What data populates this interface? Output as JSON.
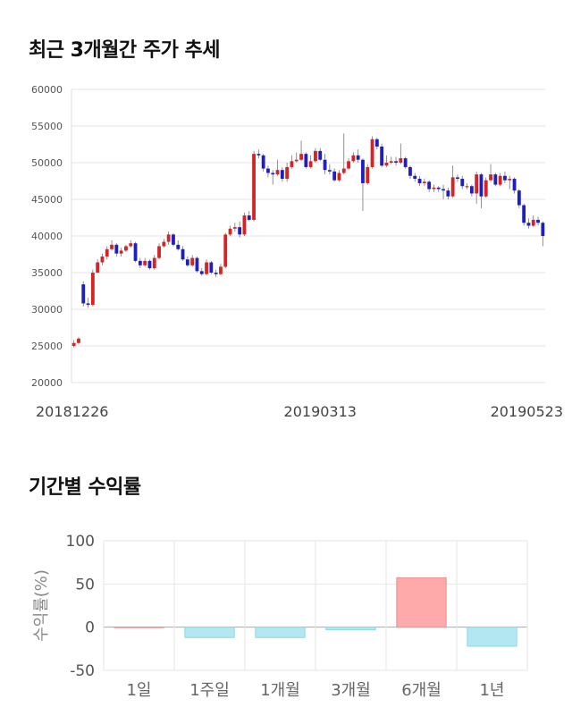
{
  "sections": {
    "price_title": "최근 3개월간 주가 추세",
    "returns_title": "기간별 수익률"
  },
  "colors": {
    "up": "#d42424",
    "down": "#1f1fbf",
    "positive_bar": "#ffaaaa",
    "negative_bar": "#b3e8f2",
    "grid": "#e6e6e6"
  },
  "chart_data": [
    {
      "type": "candlestick",
      "title": "최근 3개월간 주가 추세",
      "ylim": [
        20000,
        60000
      ],
      "y_ticks": [
        "60000",
        "55000",
        "50000",
        "45000",
        "40000",
        "35000",
        "30000",
        "25000",
        "20000"
      ],
      "x_tick_labels": [
        {
          "label": "20181226",
          "index": 0
        },
        {
          "label": "20190313",
          "index": 52
        },
        {
          "label": "20190523",
          "index": 100
        }
      ],
      "grid": true,
      "candles": [
        [
          25000,
          25400,
          25800,
          24800
        ],
        [
          25400,
          26000,
          26200,
          25200
        ],
        [
          33400,
          30800,
          33800,
          30400
        ],
        [
          30800,
          30600,
          31600,
          30200
        ],
        [
          30600,
          35000,
          35400,
          30400
        ],
        [
          35000,
          36400,
          36800,
          35000
        ],
        [
          36400,
          37200,
          37600,
          36000
        ],
        [
          37200,
          38200,
          38600,
          36800
        ],
        [
          38200,
          38800,
          39400,
          38000
        ],
        [
          38800,
          37600,
          39000,
          37200
        ],
        [
          37600,
          38000,
          38400,
          37200
        ],
        [
          38000,
          38600,
          38800,
          37800
        ],
        [
          38600,
          39000,
          39400,
          38400
        ],
        [
          39000,
          36600,
          39200,
          36400
        ],
        [
          36600,
          36000,
          37000,
          35600
        ],
        [
          36000,
          36600,
          37000,
          35800
        ],
        [
          36600,
          35600,
          36800,
          35400
        ],
        [
          35600,
          37000,
          37400,
          35400
        ],
        [
          37000,
          38600,
          39000,
          36800
        ],
        [
          38600,
          39200,
          39600,
          38400
        ],
        [
          39200,
          40200,
          40600,
          38800
        ],
        [
          40200,
          38800,
          40400,
          38600
        ],
        [
          38800,
          38200,
          39400,
          38000
        ],
        [
          38200,
          36800,
          38600,
          36600
        ],
        [
          36800,
          36000,
          37200,
          35800
        ],
        [
          36000,
          37000,
          37400,
          35800
        ],
        [
          37000,
          35200,
          37200,
          35000
        ],
        [
          35200,
          34800,
          35600,
          34600
        ],
        [
          34800,
          36400,
          36800,
          34600
        ],
        [
          36400,
          35000,
          36600,
          34800
        ],
        [
          35000,
          34800,
          35400,
          34400
        ],
        [
          34800,
          35800,
          36200,
          34600
        ],
        [
          35800,
          40200,
          40400,
          35600
        ],
        [
          40200,
          41000,
          41400,
          40000
        ],
        [
          41000,
          41200,
          41800,
          40600
        ],
        [
          41200,
          40200,
          42000,
          39800
        ],
        [
          40200,
          42800,
          43200,
          40000
        ],
        [
          42800,
          42200,
          43400,
          42000
        ],
        [
          42200,
          51200,
          51600,
          42000
        ],
        [
          51200,
          51000,
          51800,
          50600
        ],
        [
          51000,
          49200,
          51200,
          48800
        ],
        [
          49200,
          48600,
          49600,
          48000
        ],
        [
          48600,
          48400,
          49000,
          47000
        ],
        [
          48400,
          49000,
          50400,
          48200
        ],
        [
          49000,
          47800,
          49400,
          47400
        ],
        [
          47800,
          49400,
          50000,
          47400
        ],
        [
          49400,
          50200,
          51000,
          49200
        ],
        [
          50200,
          50400,
          51400,
          50000
        ],
        [
          50400,
          51200,
          53000,
          50200
        ],
        [
          51200,
          49400,
          51400,
          49200
        ],
        [
          49400,
          50200,
          51000,
          49200
        ],
        [
          50200,
          51600,
          52000,
          50000
        ],
        [
          51600,
          50400,
          52000,
          50200
        ],
        [
          50400,
          49000,
          51200,
          48400
        ],
        [
          49000,
          48800,
          49800,
          48400
        ],
        [
          48800,
          47600,
          49200,
          47400
        ],
        [
          47600,
          48600,
          49000,
          47400
        ],
        [
          48600,
          49200,
          54000,
          48400
        ],
        [
          49200,
          50200,
          50600,
          49000
        ],
        [
          50200,
          51000,
          51400,
          50000
        ],
        [
          51000,
          50400,
          51800,
          50000
        ],
        [
          50400,
          47200,
          50600,
          43400
        ],
        [
          47200,
          49400,
          49800,
          47000
        ],
        [
          49400,
          53200,
          53600,
          49200
        ],
        [
          53200,
          52200,
          53400,
          51800
        ],
        [
          52200,
          49600,
          52600,
          49400
        ],
        [
          49600,
          50000,
          51000,
          49400
        ],
        [
          50000,
          50200,
          50800,
          49800
        ],
        [
          50200,
          50000,
          50800,
          49600
        ],
        [
          50000,
          50600,
          52600,
          49800
        ],
        [
          50600,
          49400,
          50800,
          49200
        ],
        [
          49400,
          48200,
          49600,
          47800
        ],
        [
          48200,
          47800,
          48600,
          47400
        ],
        [
          47800,
          47200,
          48200,
          46800
        ],
        [
          47200,
          47400,
          47800,
          46800
        ],
        [
          47400,
          46400,
          47600,
          46000
        ],
        [
          46400,
          46600,
          47000,
          46000
        ],
        [
          46600,
          46400,
          46800,
          46000
        ],
        [
          46400,
          46200,
          47000,
          45000
        ],
        [
          46200,
          45400,
          46600,
          45000
        ],
        [
          45400,
          48000,
          49600,
          45200
        ],
        [
          48000,
          47800,
          48400,
          47400
        ],
        [
          47800,
          46800,
          48200,
          46400
        ],
        [
          46800,
          46800,
          47200,
          46400
        ],
        [
          46800,
          45800,
          47000,
          45400
        ],
        [
          45800,
          48400,
          48800,
          44400
        ],
        [
          48400,
          45400,
          48600,
          43800
        ],
        [
          45400,
          47600,
          48000,
          45200
        ],
        [
          47600,
          48400,
          49800,
          47400
        ],
        [
          48400,
          47000,
          48600,
          46800
        ],
        [
          47000,
          48200,
          48600,
          46800
        ],
        [
          48200,
          47600,
          48800,
          47200
        ],
        [
          47600,
          47800,
          48200,
          46400
        ],
        [
          47800,
          46200,
          48000,
          45800
        ],
        [
          46200,
          44200,
          46400,
          43800
        ],
        [
          44200,
          41800,
          44400,
          41400
        ],
        [
          41800,
          41400,
          42400,
          41000
        ],
        [
          41400,
          42200,
          42800,
          41200
        ],
        [
          42200,
          41800,
          42600,
          41400
        ],
        [
          41800,
          40000,
          42000,
          38600
        ]
      ]
    },
    {
      "type": "bar",
      "title": "기간별 수익률",
      "ylabel": "수익률(%)",
      "ylim": [
        -50,
        100
      ],
      "y_ticks": [
        "100",
        "50",
        "0",
        "-50"
      ],
      "categories": [
        "1일",
        "1주일",
        "1개월",
        "3개월",
        "6개월",
        "1년"
      ],
      "values": [
        0,
        -12,
        -12,
        -3,
        57,
        -22
      ],
      "grid": true
    }
  ]
}
